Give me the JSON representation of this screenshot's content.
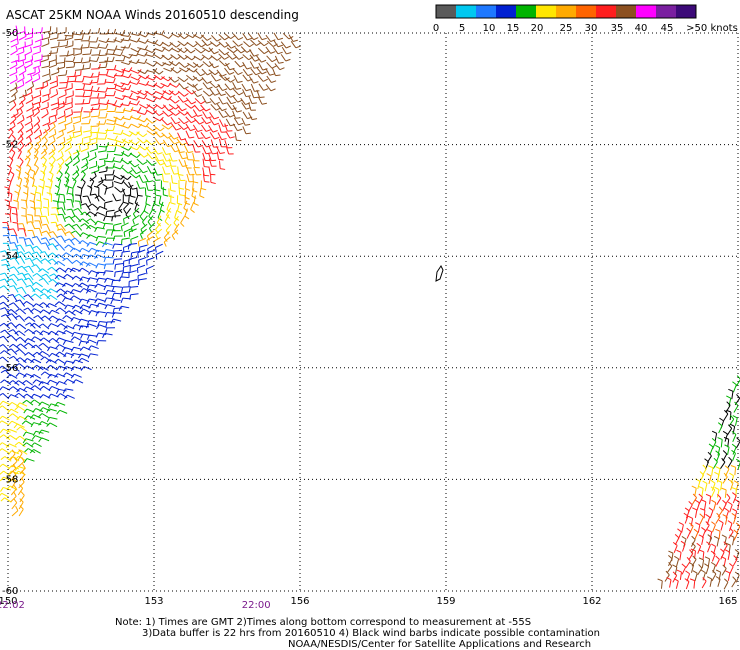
{
  "title": "ASCAT 25KM NOAA Winds 20160510 descending",
  "colorbar": {
    "labels": [
      "0",
      "5",
      "10",
      "15",
      "20",
      "25",
      "30",
      "35",
      "40",
      "45",
      ">50 knots"
    ],
    "colors": [
      "#5a5a5a",
      "#00c8f0",
      "#1e78ff",
      "#0020d2",
      "#00b400",
      "#ffe600",
      "#ffaa00",
      "#ff6400",
      "#ff1e1e",
      "#8c5020",
      "#ff00ff",
      "#7a1fa0",
      "#3c0a78"
    ]
  },
  "axes": {
    "lon_ticks": [
      "150",
      "153",
      "156",
      "159",
      "162",
      "165"
    ],
    "lat_ticks": [
      "-50",
      "-52",
      "-54",
      "-56",
      "-58",
      "-60"
    ],
    "lon_range": [
      150,
      165
    ],
    "lat_range": [
      -60,
      -50
    ],
    "grid": "dotted"
  },
  "times": [
    {
      "label": "22:02",
      "lon": 150.05
    },
    {
      "label": "22:00",
      "lon": 155.1
    }
  ],
  "time_color": "#7a1a8c",
  "notes": {
    "line1": "Note: 1) Times are GMT 2)Times along bottom correspond to measurement at -55S",
    "line2": "3)Data buffer is 22 hrs from 20160510 4) Black wind barbs indicate possible contamination",
    "line3": "NOAA/NESDIS/Center for Satellite Applications and Research"
  }
}
